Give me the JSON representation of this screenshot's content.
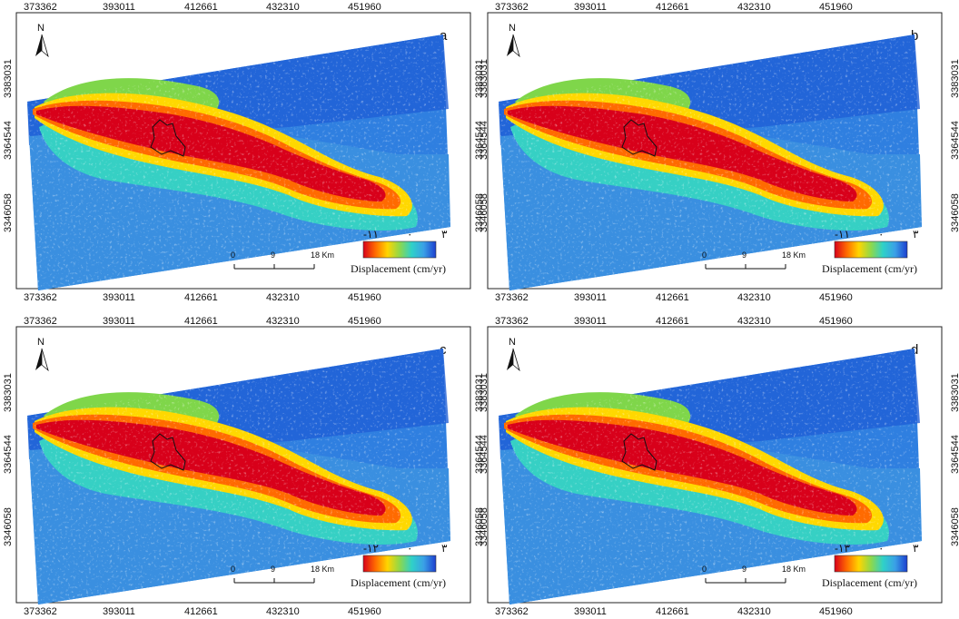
{
  "x_ticks": [
    "373362",
    "393011",
    "412661",
    "432310",
    "451960"
  ],
  "y_ticks": [
    "3383031",
    "3364544",
    "3346058"
  ],
  "north_label": "N",
  "scale_bar": {
    "labels": [
      "0",
      "9",
      "18 Km"
    ]
  },
  "legend": {
    "title": "Displacement (cm/yr)",
    "colors": [
      "#d8001a",
      "#ff6a00",
      "#ffd500",
      "#8fd84a",
      "#2fd1c8",
      "#3aa0e6",
      "#1c3fcf"
    ]
  },
  "panels": [
    {
      "id": "a",
      "label": "a",
      "legend_min": "-۱۱",
      "legend_mid": "۰",
      "legend_max": "۳"
    },
    {
      "id": "b",
      "label": "b",
      "legend_min": "-۱۱",
      "legend_mid": "۰",
      "legend_max": "۳"
    },
    {
      "id": "c",
      "label": "c",
      "legend_min": "-۱۲",
      "legend_mid": "۰",
      "legend_max": "۳"
    },
    {
      "id": "d",
      "label": "d",
      "legend_min": "-۱۳",
      "legend_mid": "۰",
      "legend_max": "۳"
    }
  ]
}
